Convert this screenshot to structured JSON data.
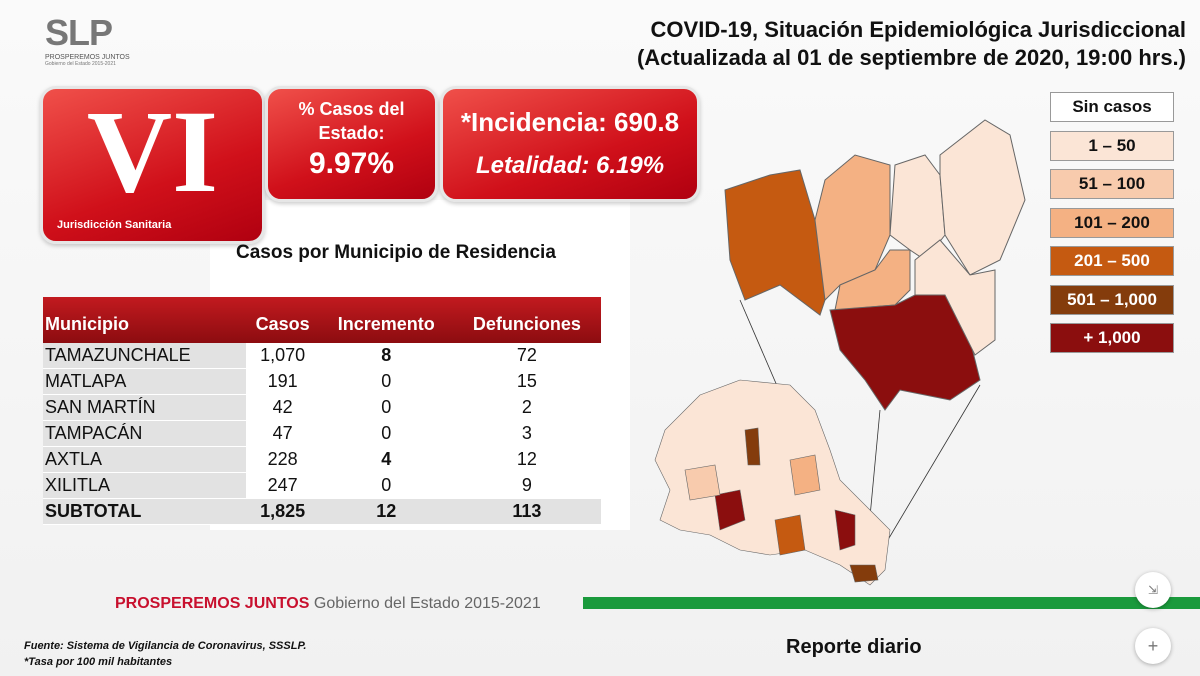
{
  "logo": {
    "mark": "SLP",
    "line1": "PROSPEREMOS JUNTOS",
    "line2": "Gobierno del Estado 2015-2021"
  },
  "title": {
    "line1": "COVID-19, Situación Epidemiológica Jurisdiccional",
    "line2": "(Actualizada al 01 de septiembre de 2020, 19:00 hrs.)"
  },
  "jurisdiction": {
    "numeral": "VI",
    "label": "Jurisdicción Sanitaria"
  },
  "percent": {
    "label": "% Casos del Estado:",
    "value": "9.97%"
  },
  "incidence": {
    "label": "*Incidencia: 690.8",
    "lethality": "Letalidad: 6.19%"
  },
  "table": {
    "subtitle": "Casos por Municipio  de Residencia",
    "headers": [
      "Municipio",
      "Casos",
      "Incremento",
      "Defunciones"
    ],
    "rows": [
      [
        "TAMAZUNCHALE",
        "1,070",
        "8",
        "72"
      ],
      [
        "MATLAPA",
        "191",
        "0",
        "15"
      ],
      [
        "SAN MARTÍN",
        "42",
        "0",
        "2"
      ],
      [
        "TAMPACÁN",
        "47",
        "0",
        "3"
      ],
      [
        "AXTLA",
        "228",
        "4",
        "12"
      ],
      [
        "XILITLA",
        "247",
        "0",
        "9"
      ]
    ],
    "total": [
      "SUBTOTAL",
      "1,825",
      "12",
      "113"
    ]
  },
  "legend": [
    {
      "label": "Sin casos",
      "color": "#ffffff"
    },
    {
      "label": "1 – 50",
      "color": "#fbe5d6"
    },
    {
      "label": "51 – 100",
      "color": "#f8cbad"
    },
    {
      "label": "101 – 200",
      "color": "#f4b183"
    },
    {
      "label": "201 – 500",
      "color": "#c55a11"
    },
    {
      "label": "501 – 1,000",
      "color": "#843c0c"
    },
    {
      "label": "+ 1,000",
      "color": "#8b0e0e"
    }
  ],
  "footer": {
    "brand": "PROSPEREMOS JUNTOS",
    "gov": "Gobierno del Estado 2015-2021",
    "source": "Fuente: Sistema de Vigilancia de Coronavirus, SSSLP.",
    "note": "*Tasa por 100 mil habitantes",
    "report": "Reporte diario"
  },
  "controls": {
    "collapse": "collapse-icon",
    "add": "+"
  }
}
